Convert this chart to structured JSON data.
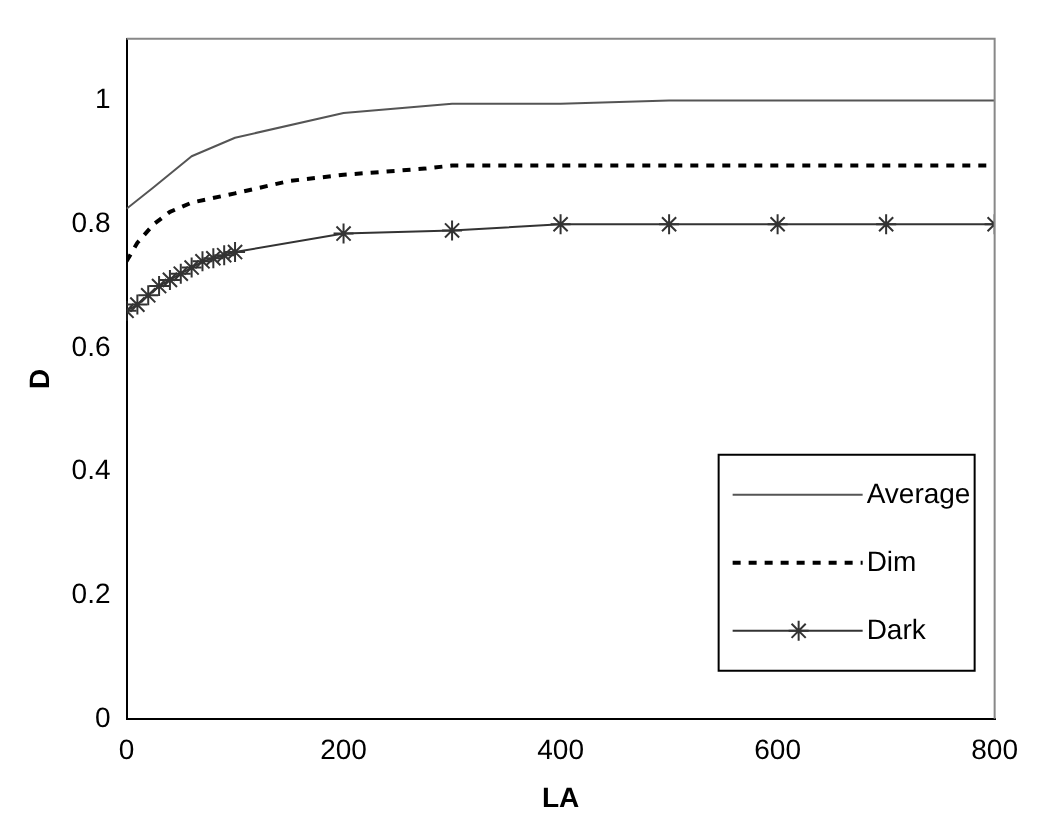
{
  "chart_data": {
    "type": "line",
    "xlabel": "LA",
    "ylabel": "D",
    "xlim": [
      0,
      800
    ],
    "ylim": [
      0,
      1.1
    ],
    "xticks": [
      0,
      200,
      400,
      600,
      800
    ],
    "yticks": [
      0,
      0.2,
      0.4,
      0.6,
      0.8,
      1
    ],
    "grid": false,
    "legend": "bottom right",
    "series": [
      {
        "name": "Average",
        "color": "#555555",
        "line_style": "solid",
        "marker": "none",
        "x": [
          0,
          25,
          60,
          100,
          200,
          300,
          400,
          500,
          600,
          700,
          800
        ],
        "values": [
          0.825,
          0.86,
          0.91,
          0.94,
          0.98,
          0.995,
          0.995,
          1,
          1,
          1,
          1
        ]
      },
      {
        "name": "Dim",
        "color": "#000000",
        "line_style": "dashed",
        "marker": "none",
        "x": [
          0,
          10,
          25,
          40,
          60,
          100,
          150,
          200,
          275,
          300,
          400,
          500,
          600,
          700,
          800
        ],
        "values": [
          0.74,
          0.77,
          0.8,
          0.82,
          0.835,
          0.85,
          0.87,
          0.88,
          0.89,
          0.895,
          0.895,
          0.895,
          0.895,
          0.895,
          0.895
        ]
      },
      {
        "name": "Dark",
        "color": "#333333",
        "line_style": "solid",
        "marker": "cross",
        "x": [
          0,
          10,
          20,
          30,
          40,
          50,
          60,
          70,
          80,
          90,
          100,
          200,
          300,
          400,
          500,
          600,
          700,
          800
        ],
        "values": [
          0.66,
          0.67,
          0.685,
          0.7,
          0.71,
          0.72,
          0.73,
          0.74,
          0.745,
          0.75,
          0.755,
          0.785,
          0.79,
          0.8,
          0.8,
          0.8,
          0.8,
          0.8
        ]
      }
    ]
  }
}
